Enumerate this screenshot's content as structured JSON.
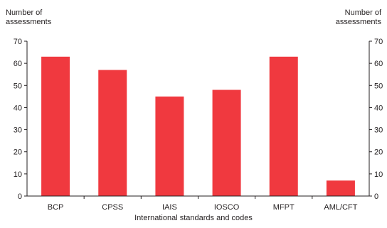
{
  "chart_data": {
    "type": "bar",
    "categories": [
      "BCP",
      "CPSS",
      "IAIS",
      "IOSCO",
      "MFPT",
      "AML/CFT"
    ],
    "values": [
      63,
      57,
      45,
      48,
      63,
      7
    ],
    "ylabel": "Number of\nassessments",
    "ylabel_right": "Number of\nassessments",
    "xlabel": "International standards and codes",
    "ylim": [
      0,
      70
    ],
    "yticks": [
      0,
      10,
      20,
      30,
      40,
      50,
      60,
      70
    ],
    "bar_color": "#f0393f",
    "axis_color": "#231f20",
    "grid": false,
    "legend": "none"
  }
}
